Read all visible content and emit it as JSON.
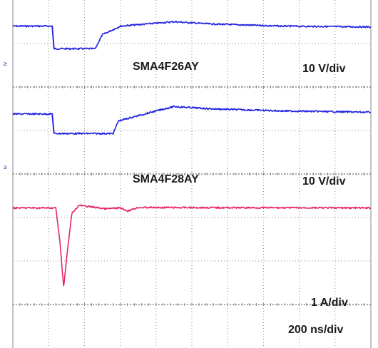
{
  "chart_data": {
    "type": "line",
    "title": "",
    "xlabel": "",
    "ylabel": "",
    "x_divisions": 10,
    "y_divisions": 8,
    "grid": true,
    "background_color": "#ffffff",
    "grid_color": "#8a8a8a",
    "timebase": "200 ns/div",
    "channels": [
      {
        "id": "ch1",
        "label": "SMA4F26AY",
        "scale": "10 V/div",
        "color": "#1f1fe0",
        "ground_marker": "≥",
        "points_div": [
          [
            0,
            0.6
          ],
          [
            1.1,
            0.6
          ],
          [
            1.15,
            1.12
          ],
          [
            2.3,
            1.12
          ],
          [
            2.5,
            0.8
          ],
          [
            3.0,
            0.6
          ],
          [
            4.5,
            0.5
          ],
          [
            5.5,
            0.55
          ],
          [
            7.5,
            0.6
          ],
          [
            10,
            0.62
          ]
        ]
      },
      {
        "id": "ch2",
        "label": "SMA4F28AY",
        "scale": "10 V/div",
        "color": "#1f1fe0",
        "ground_marker": "≥",
        "points_div": [
          [
            0,
            2.62
          ],
          [
            1.1,
            2.62
          ],
          [
            1.15,
            3.07
          ],
          [
            2.8,
            3.07
          ],
          [
            2.95,
            2.78
          ],
          [
            4.0,
            2.55
          ],
          [
            4.5,
            2.45
          ],
          [
            5.5,
            2.5
          ],
          [
            7.5,
            2.55
          ],
          [
            10,
            2.58
          ]
        ]
      },
      {
        "id": "ch3",
        "label": "",
        "scale": "1 A/div",
        "color": "#e8246a",
        "ground_marker": "",
        "points_div": [
          [
            0,
            4.78
          ],
          [
            1.2,
            4.78
          ],
          [
            1.32,
            5.6
          ],
          [
            1.42,
            6.6
          ],
          [
            1.52,
            5.8
          ],
          [
            1.65,
            4.9
          ],
          [
            1.85,
            4.72
          ],
          [
            2.6,
            4.8
          ],
          [
            3.0,
            4.78
          ],
          [
            3.2,
            4.85
          ],
          [
            3.5,
            4.77
          ],
          [
            10,
            4.78
          ]
        ]
      }
    ]
  }
}
